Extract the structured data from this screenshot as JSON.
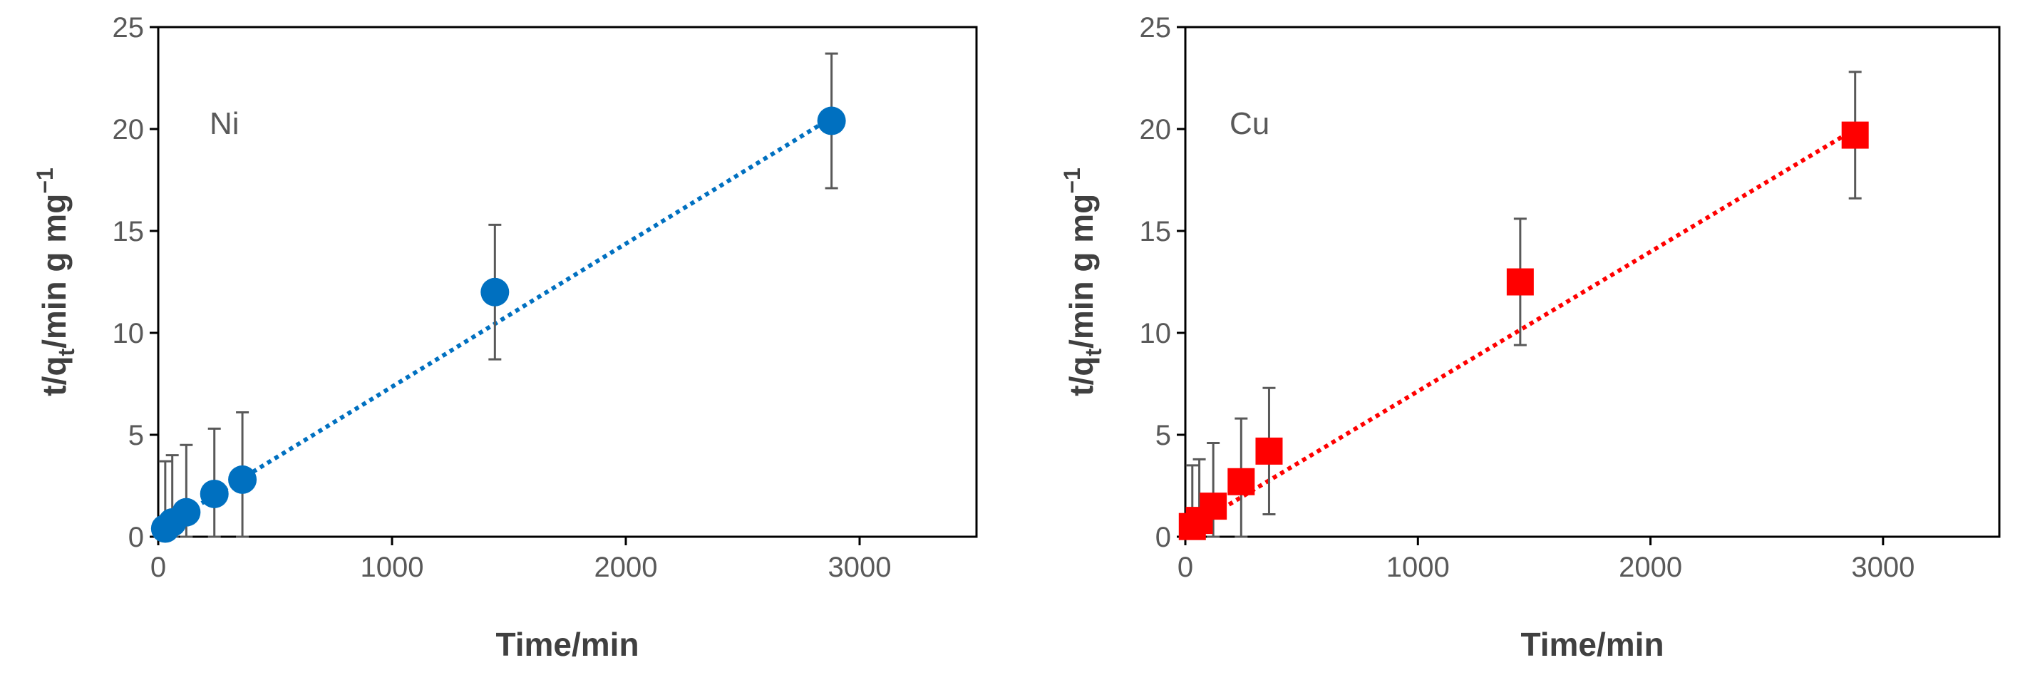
{
  "chart_data": [
    {
      "type": "scatter",
      "panel_label": "Ni",
      "xlabel": "Time/min",
      "ylabel": {
        "main": "t/q",
        "sub": "t",
        "rest": "/min g mg",
        "sup": "−1"
      },
      "xlim": [
        0,
        3500
      ],
      "ylim": [
        0,
        25
      ],
      "xticks": [
        0,
        1000,
        2000,
        3000
      ],
      "yticks": [
        0,
        5,
        10,
        15,
        20,
        25
      ],
      "grid": false,
      "marker": "circle",
      "color": "#0070c0",
      "series": [
        {
          "x": [
            30,
            60,
            120,
            240,
            360,
            1440,
            2880
          ],
          "y": [
            0.4,
            0.7,
            1.2,
            2.1,
            2.8,
            12.0,
            20.4
          ],
          "yerr": [
            3.3,
            3.3,
            3.3,
            3.2,
            3.3,
            3.3,
            3.3
          ]
        }
      ],
      "trendline": {
        "x": [
          30,
          2880
        ],
        "y": [
          0.55,
          20.55
        ],
        "style": "dotted"
      }
    },
    {
      "type": "scatter",
      "panel_label": "Cu",
      "xlabel": "Time/min",
      "ylabel": {
        "main": "t/q",
        "sub": "t",
        "rest": "/min g mg",
        "sup": "−1"
      },
      "xlim": [
        0,
        3500
      ],
      "ylim": [
        0,
        25
      ],
      "xticks": [
        0,
        1000,
        2000,
        3000
      ],
      "yticks": [
        0,
        5,
        10,
        15,
        20,
        25
      ],
      "grid": false,
      "marker": "square",
      "color": "#ff0000",
      "series": [
        {
          "x": [
            30,
            60,
            120,
            240,
            360,
            1440,
            2880
          ],
          "y": [
            0.5,
            0.8,
            1.5,
            2.7,
            4.2,
            12.5,
            19.7
          ],
          "yerr": [
            3.0,
            3.0,
            3.1,
            3.1,
            3.1,
            3.1,
            3.1
          ]
        }
      ],
      "trendline": {
        "x": [
          30,
          2880
        ],
        "y": [
          0.5,
          20.0
        ],
        "style": "dotted"
      }
    }
  ]
}
